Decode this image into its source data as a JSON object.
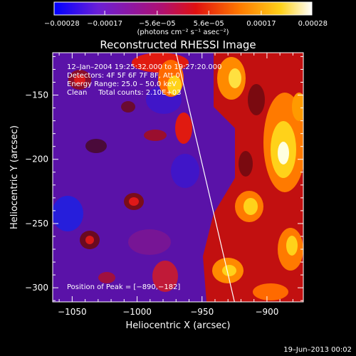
{
  "chart_data": {
    "type": "heatmap",
    "title": "Reconstructed RHESSI Image",
    "xlabel": "Heliocentric X (arcsec)",
    "ylabel": "Heliocentric Y (arcsec)",
    "xlim": [
      -1065,
      -872
    ],
    "ylim": [
      -311,
      -117
    ],
    "x_ticks": [
      -1050,
      -1000,
      -950,
      -900
    ],
    "y_ticks": [
      -300,
      -250,
      -200,
      -150
    ],
    "x_tick_labels": [
      "−1050",
      "−1000",
      "−950",
      "−900"
    ],
    "y_tick_labels": [
      "−300",
      "−250",
      "−200",
      "−150"
    ],
    "colorbar": {
      "range": [
        -0.00028,
        0.00028
      ],
      "ticks": [
        -0.00028,
        -0.00017,
        -5.6e-05,
        5.6e-05,
        0.00017,
        0.00028
      ],
      "tick_labels": [
        "−0.00028",
        "−0.00017",
        "−5.6e−05",
        "5.6e−05",
        "0.00017",
        "0.00028"
      ],
      "units": "(photons cm⁻² s⁻¹ asec⁻²)",
      "colors": [
        "#0000ff",
        "#6a1fd6",
        "#b01070",
        "#e11010",
        "#ff7a00",
        "#ffd21a",
        "#ffffff"
      ]
    },
    "annotations": [
      "12–Jan–2004 19:25:32.000 to 19:27:20.000",
      "Detectors: 4F 5F 6F 7F 8F, Att 0",
      "Energy Range: 25.0 – 50.0 keV",
      "Clean     Total counts: 2.10E+03"
    ],
    "peak_label": "Position of Peak = [−890,−182]",
    "peak": [
      -890,
      -182
    ],
    "limb_line": [
      [
        -970,
        -117
      ],
      [
        -925,
        -311
      ]
    ]
  },
  "footer": {
    "timestamp": "19–Jun–2013 00:02"
  }
}
